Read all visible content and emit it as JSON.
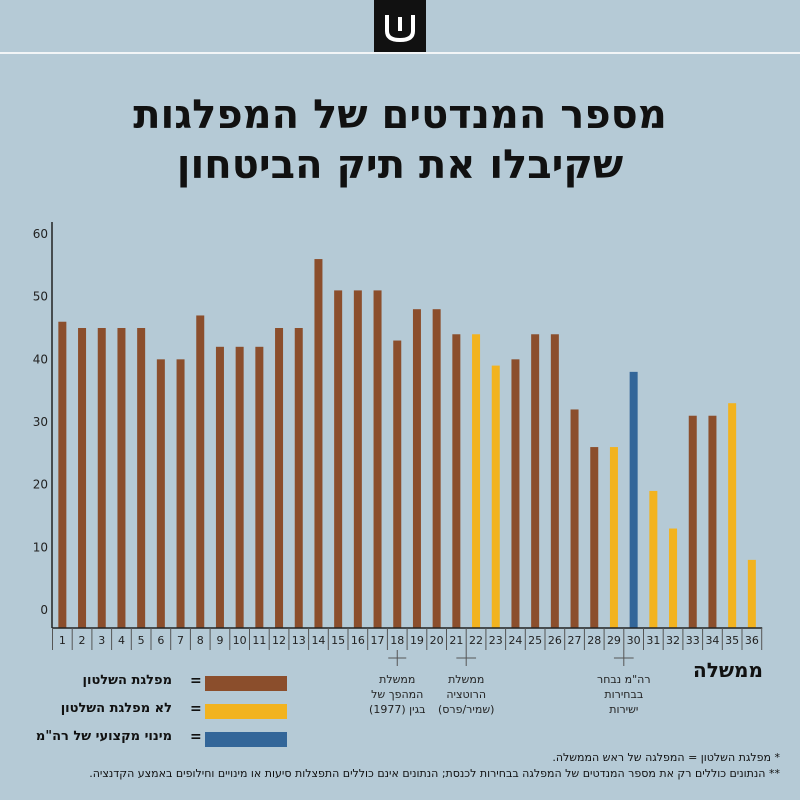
{
  "logo": {
    "name": "brand-logo"
  },
  "title": {
    "line1": "מספר המנדטים של המפלגות",
    "line2": "שקיבלו את תיק הביטחון"
  },
  "colors": {
    "background": "#b5cad6",
    "ruling_party": "#8b4e2c",
    "not_ruling_party": "#f2b31f",
    "pm_professional": "#336699"
  },
  "chart_data": {
    "type": "bar",
    "xlabel": "ממשלה",
    "ylim": [
      0,
      60
    ],
    "yticks": [
      0,
      10,
      20,
      30,
      40,
      50,
      60
    ],
    "categories": [
      "1",
      "2",
      "3",
      "4",
      "5",
      "6",
      "7",
      "8",
      "9",
      "10",
      "11",
      "12",
      "13",
      "14",
      "15",
      "16",
      "17",
      "18",
      "19",
      "20",
      "21",
      "22",
      "23",
      "24",
      "25",
      "26",
      "27",
      "28",
      "29",
      "30",
      "31",
      "32",
      "33",
      "34",
      "35",
      "36"
    ],
    "values": [
      46,
      45,
      45,
      45,
      45,
      40,
      40,
      47,
      42,
      42,
      42,
      45,
      45,
      56,
      51,
      51,
      51,
      43,
      48,
      48,
      44,
      44,
      39,
      40,
      44,
      44,
      32,
      26,
      26,
      38,
      19,
      13,
      31,
      31,
      33,
      8
    ],
    "bar_kind": [
      "ruling",
      "ruling",
      "ruling",
      "ruling",
      "ruling",
      "ruling",
      "ruling",
      "ruling",
      "ruling",
      "ruling",
      "ruling",
      "ruling",
      "ruling",
      "ruling",
      "ruling",
      "ruling",
      "ruling",
      "ruling",
      "ruling",
      "ruling",
      "ruling",
      "not_ruling",
      "not_ruling",
      "ruling",
      "ruling",
      "ruling",
      "ruling",
      "ruling",
      "not_ruling",
      "pm_professional",
      "not_ruling",
      "not_ruling",
      "ruling",
      "ruling",
      "not_ruling",
      "not_ruling"
    ],
    "annotations": [
      {
        "category": "18",
        "lines": [
          "ממשלת",
          "המהפך של",
          "בגין (1977)"
        ]
      },
      {
        "category": "21.5",
        "lines": [
          "ממשלת",
          "הרוטציה",
          "(שמיר/פרס)"
        ]
      },
      {
        "category": "29.5",
        "lines": [
          "רה\"מ נבחר",
          "בבחירות",
          "ישירות"
        ]
      }
    ],
    "legend": [
      {
        "key": "ruling",
        "label": "מפלגת השלטון"
      },
      {
        "key": "not_ruling",
        "label": "לא מפלגת השלטון"
      },
      {
        "key": "pm_professional",
        "label": "מינוי מקצועי של רה\"מ"
      }
    ]
  },
  "legend_equals": "=",
  "footnotes": {
    "line1": "*   מפלגת השלטון = המפלגה של ראש הממשלה.",
    "line2": "** הנתונים כוללים רק את מספר המנדטים של המפלגה בבחירות לכנסת; הנתונים אינם כוללים התפצלות סיעות או מינויים וחילופים באמצע הקדנציה."
  }
}
